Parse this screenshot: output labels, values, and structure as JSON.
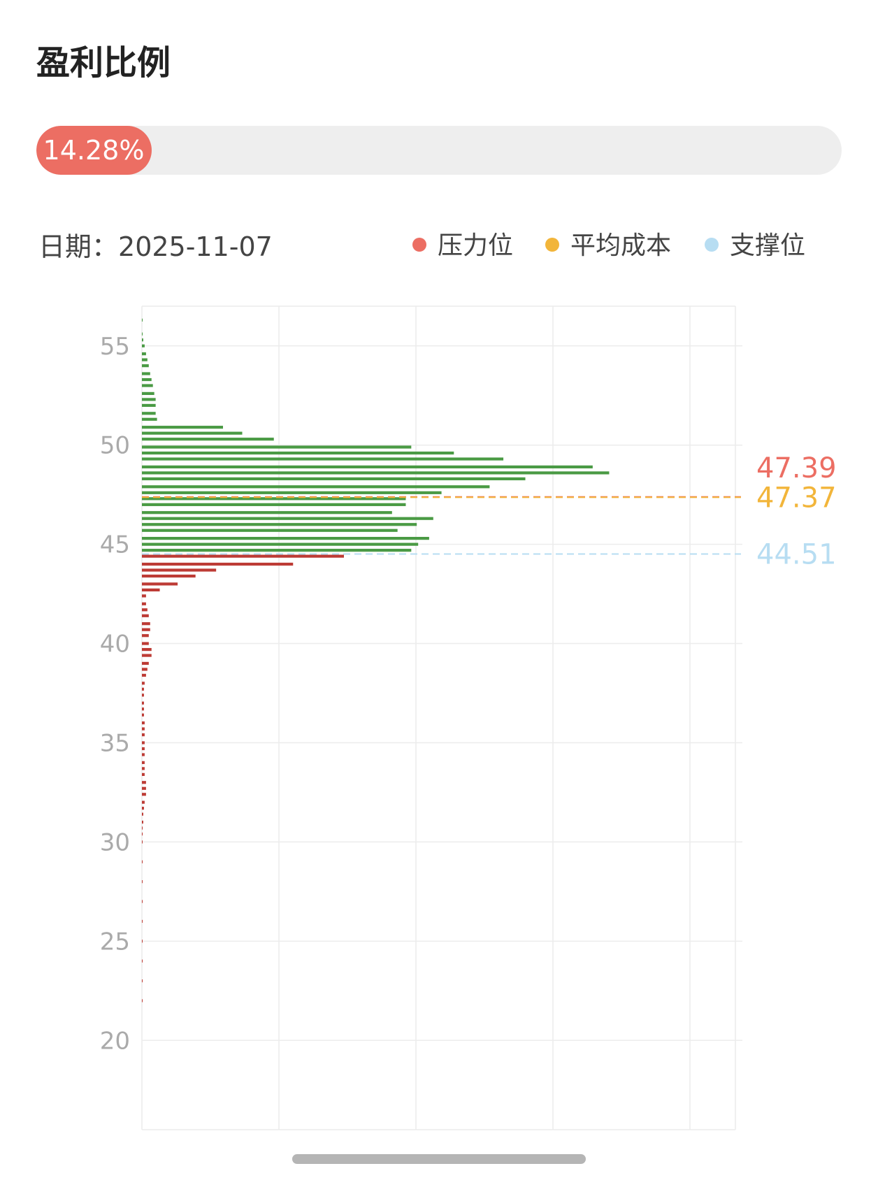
{
  "header": {
    "title": "盈利比例"
  },
  "progress": {
    "label": "14.28%",
    "value": 14.28
  },
  "date": {
    "label": "日期：",
    "value": "2025-11-07"
  },
  "legend": {
    "items": [
      {
        "label": "压力位",
        "color": "#ec6e63"
      },
      {
        "label": "平均成本",
        "color": "#f2b53a"
      },
      {
        "label": "支撑位",
        "color": "#b7ddf2"
      }
    ]
  },
  "colors": {
    "profit": "#4a9a44",
    "loss": "#bd3b35",
    "grid": "#ececec",
    "axis": "#aaaaaa"
  },
  "chart_data": {
    "type": "bar",
    "orientation": "horizontal",
    "title": "",
    "xlabel": "",
    "ylabel": "",
    "ylim": [
      15.5,
      57
    ],
    "yticks": [
      20,
      25,
      30,
      35,
      40,
      45,
      50,
      55
    ],
    "grid": true,
    "reference_lines": [
      {
        "value": 47.39,
        "label": "47.39",
        "color": "#ec6e63"
      },
      {
        "value": 47.37,
        "label": "47.37",
        "color": "#f2b53a"
      },
      {
        "value": 44.51,
        "label": "44.51",
        "color": "#b7ddf2"
      }
    ],
    "series": [
      {
        "values": [
          [
            56.3,
            0.3
          ],
          [
            55.6,
            0.5
          ],
          [
            55.3,
            1
          ],
          [
            55.0,
            2
          ],
          [
            54.6,
            3
          ],
          [
            54.3,
            4
          ],
          [
            54.0,
            5
          ],
          [
            53.6,
            6
          ],
          [
            53.3,
            7
          ],
          [
            53.0,
            8
          ],
          [
            52.6,
            9
          ],
          [
            52.3,
            10
          ],
          [
            52.0,
            10
          ],
          [
            51.6,
            10
          ],
          [
            51.3,
            11
          ],
          [
            50.9,
            59
          ],
          [
            50.6,
            73
          ],
          [
            50.3,
            96
          ],
          [
            49.9,
            196
          ],
          [
            49.6,
            227
          ],
          [
            49.3,
            263
          ],
          [
            48.9,
            328
          ],
          [
            48.6,
            340
          ],
          [
            48.3,
            279
          ],
          [
            47.9,
            253
          ],
          [
            47.6,
            218
          ],
          [
            47.3,
            192
          ],
          [
            47.0,
            192
          ],
          [
            46.6,
            182
          ],
          [
            46.3,
            212
          ],
          [
            46.0,
            200
          ],
          [
            45.7,
            186
          ],
          [
            45.3,
            209
          ],
          [
            45.0,
            201
          ],
          [
            44.7,
            196
          ]
        ]
      },
      {
        "values": [
          [
            44.4,
            147
          ],
          [
            44.0,
            110
          ],
          [
            43.7,
            54
          ],
          [
            43.4,
            39
          ],
          [
            43.0,
            26
          ],
          [
            42.7,
            13
          ],
          [
            42.4,
            3
          ],
          [
            42.0,
            3
          ],
          [
            41.7,
            4
          ],
          [
            41.4,
            5
          ],
          [
            41.0,
            6
          ],
          [
            40.7,
            6
          ],
          [
            40.4,
            5
          ],
          [
            40.0,
            5
          ],
          [
            39.7,
            7
          ],
          [
            39.4,
            7
          ],
          [
            39.0,
            5
          ],
          [
            38.7,
            4
          ],
          [
            38.4,
            3
          ],
          [
            38.0,
            2
          ],
          [
            37.7,
            1.5
          ],
          [
            37.4,
            1.5
          ],
          [
            37.0,
            1.5
          ],
          [
            36.7,
            1.5
          ],
          [
            36.4,
            1.5
          ],
          [
            36.0,
            2
          ],
          [
            35.7,
            2
          ],
          [
            35.4,
            2
          ],
          [
            35.0,
            2
          ],
          [
            34.7,
            2
          ],
          [
            34.4,
            2
          ],
          [
            34.0,
            2
          ],
          [
            33.7,
            2
          ],
          [
            33.4,
            2
          ],
          [
            33.0,
            3
          ],
          [
            32.7,
            3
          ],
          [
            32.4,
            3
          ],
          [
            32.0,
            2
          ],
          [
            31.7,
            1.5
          ],
          [
            31.4,
            1
          ],
          [
            31.0,
            1
          ],
          [
            30.7,
            0.5
          ],
          [
            30.4,
            0.5
          ],
          [
            30.0,
            0.5
          ],
          [
            29.0,
            0.3
          ],
          [
            28.0,
            0.3
          ],
          [
            27.0,
            0.3
          ],
          [
            26.0,
            0.3
          ],
          [
            25.0,
            0.3
          ],
          [
            24.0,
            0.3
          ],
          [
            23.0,
            0.3
          ],
          [
            22.0,
            0.3
          ]
        ]
      }
    ]
  }
}
